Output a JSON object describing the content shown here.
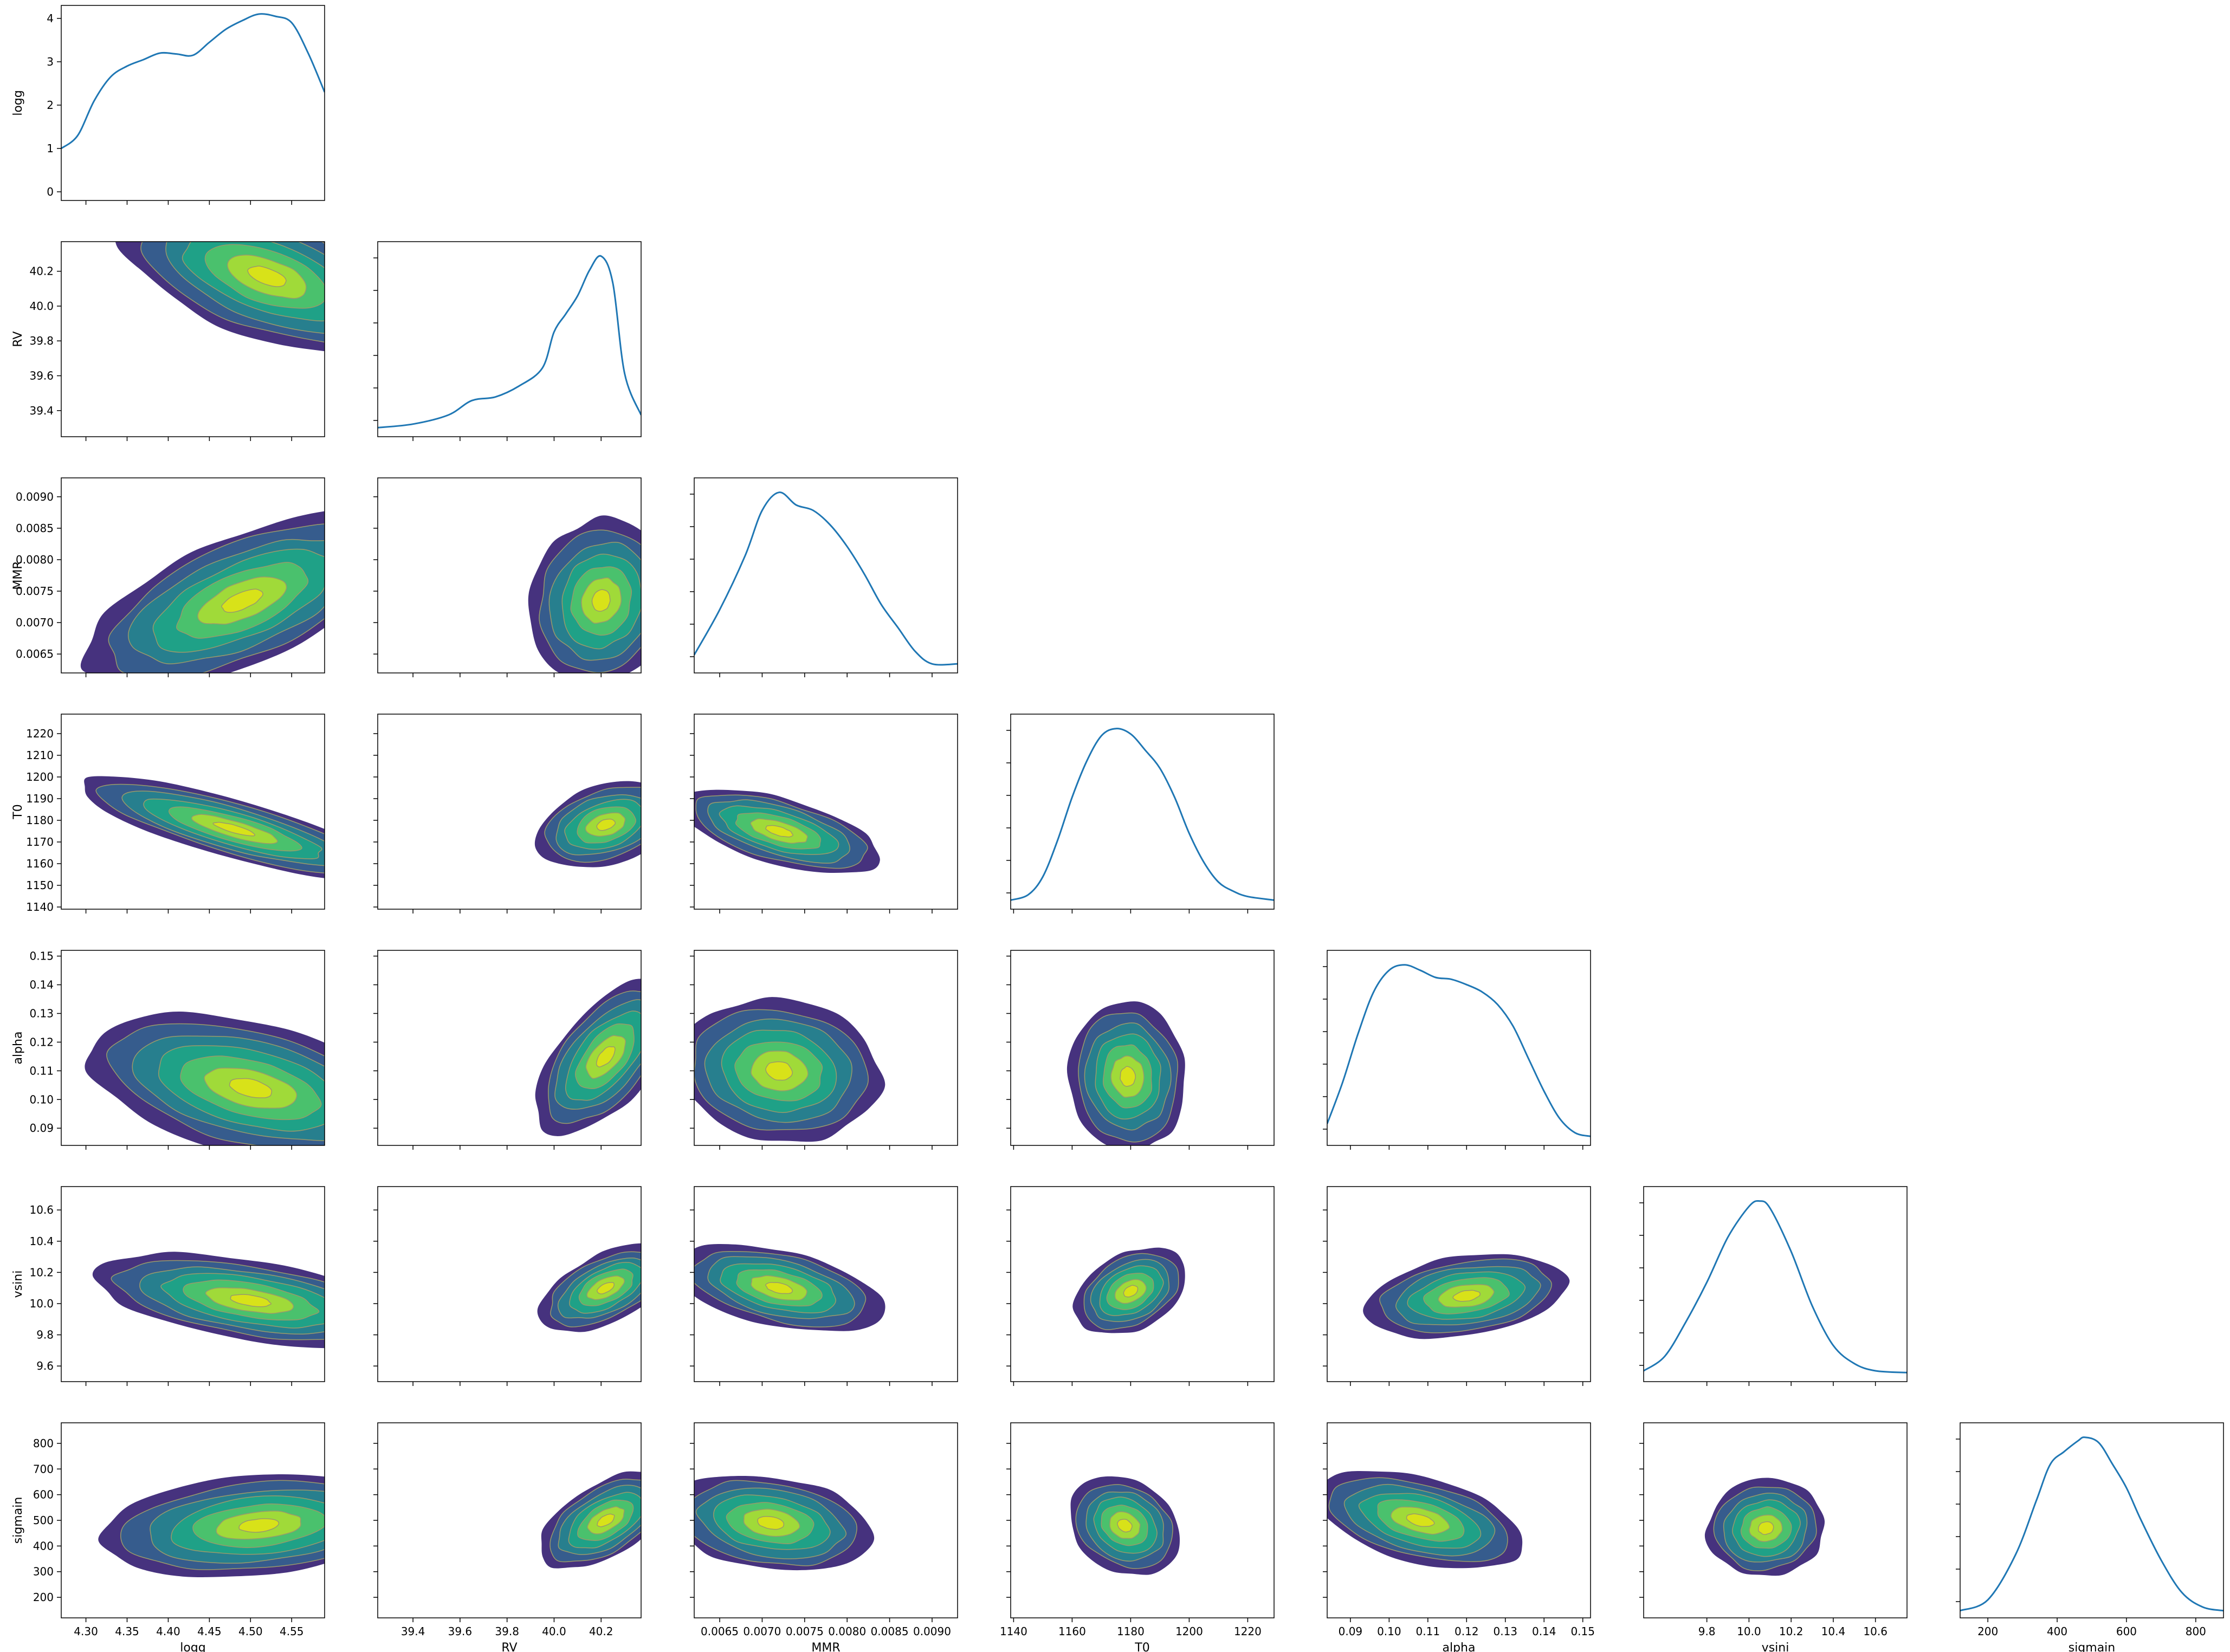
{
  "chart_data": {
    "type": "corner",
    "title": "",
    "parameters": [
      "logg",
      "RV",
      "MMR",
      "T0",
      "alpha",
      "vsini",
      "sigmain"
    ],
    "axis_labels": [
      "logg",
      "RV",
      "MMR",
      "T0",
      "alpha",
      "vsini",
      "sigmain"
    ],
    "ranges": [
      [
        4.27,
        4.59
      ],
      [
        39.25,
        40.37
      ],
      [
        0.0062,
        0.0093
      ],
      [
        1139,
        1229
      ],
      [
        0.084,
        0.152
      ],
      [
        9.5,
        10.75
      ],
      [
        120,
        880
      ]
    ],
    "x_ticks": [
      [
        "4.30",
        "4.35",
        "4.40",
        "4.45",
        "4.50",
        "4.55"
      ],
      [
        "39.4",
        "39.6",
        "39.8",
        "40.0",
        "40.2"
      ],
      [
        "0.0065",
        "0.0070",
        "0.0075",
        "0.0080",
        "0.0085",
        "0.0090"
      ],
      [
        "1140",
        "1160",
        "1180",
        "1200",
        "1220"
      ],
      [
        "0.09",
        "0.10",
        "0.11",
        "0.12",
        "0.13",
        "0.14",
        "0.15"
      ],
      [
        "9.8",
        "10.0",
        "10.2",
        "10.4",
        "10.6"
      ],
      [
        "200",
        "400",
        "600",
        "800"
      ]
    ],
    "y_ticks": [
      [
        "39.4",
        "39.6",
        "39.8",
        "40.0",
        "40.2"
      ],
      [
        "0.0065",
        "0.0070",
        "0.0075",
        "0.0080",
        "0.0085",
        "0.0090"
      ],
      [
        "1140",
        "1150",
        "1160",
        "1170",
        "1180",
        "1190",
        "1200",
        "1210",
        "1220"
      ],
      [
        "0.09",
        "0.10",
        "0.11",
        "0.12",
        "0.13",
        "0.14",
        "0.15"
      ],
      [
        "9.6",
        "9.8",
        "10.0",
        "10.2",
        "10.4",
        "10.6"
      ],
      [
        "200",
        "300",
        "400",
        "500",
        "600",
        "700",
        "800"
      ]
    ],
    "first_diagonal_y_ticks": [
      "0",
      "1",
      "2",
      "3",
      "4"
    ],
    "first_diagonal_ylim": [
      -0.2,
      4.3
    ],
    "diagonal_kde": [
      {
        "name": "logg",
        "x": [
          4.27,
          4.29,
          4.31,
          4.33,
          4.35,
          4.37,
          4.39,
          4.41,
          4.43,
          4.45,
          4.47,
          4.49,
          4.51,
          4.53,
          4.55,
          4.57,
          4.59
        ],
        "y": [
          1.0,
          1.3,
          2.1,
          2.65,
          2.9,
          3.05,
          3.2,
          3.18,
          3.15,
          3.45,
          3.75,
          3.95,
          4.1,
          4.05,
          3.9,
          3.2,
          2.3
        ]
      },
      {
        "name": "RV",
        "x": [
          39.25,
          39.4,
          39.55,
          39.65,
          39.75,
          39.85,
          39.95,
          40.0,
          40.05,
          40.1,
          40.15,
          40.2,
          40.25,
          40.3,
          40.37
        ],
        "y": [
          0.05,
          0.07,
          0.12,
          0.2,
          0.22,
          0.28,
          0.38,
          0.58,
          0.68,
          0.78,
          0.92,
          1.0,
          0.85,
          0.35,
          0.12
        ]
      },
      {
        "name": "MMR",
        "x": [
          0.0062,
          0.0065,
          0.0068,
          0.007,
          0.0072,
          0.0074,
          0.0076,
          0.0078,
          0.008,
          0.0082,
          0.0084,
          0.0086,
          0.0088,
          0.009,
          0.0093
        ],
        "y": [
          0.1,
          0.35,
          0.65,
          0.9,
          1.0,
          0.93,
          0.9,
          0.82,
          0.7,
          0.55,
          0.38,
          0.25,
          0.12,
          0.05,
          0.05
        ]
      },
      {
        "name": "T0",
        "x": [
          1139,
          1145,
          1150,
          1155,
          1160,
          1165,
          1170,
          1175,
          1180,
          1185,
          1190,
          1195,
          1200,
          1205,
          1210,
          1215,
          1220,
          1229
        ],
        "y": [
          0.05,
          0.08,
          0.18,
          0.38,
          0.62,
          0.82,
          0.96,
          1.0,
          0.97,
          0.88,
          0.78,
          0.62,
          0.42,
          0.26,
          0.15,
          0.1,
          0.07,
          0.05
        ]
      },
      {
        "name": "alpha",
        "x": [
          0.084,
          0.088,
          0.092,
          0.096,
          0.1,
          0.104,
          0.108,
          0.112,
          0.116,
          0.12,
          0.124,
          0.128,
          0.132,
          0.136,
          0.14,
          0.144,
          0.148,
          0.152
        ],
        "y": [
          0.12,
          0.35,
          0.62,
          0.85,
          0.97,
          1.0,
          0.97,
          0.93,
          0.92,
          0.89,
          0.85,
          0.78,
          0.66,
          0.48,
          0.3,
          0.15,
          0.07,
          0.05
        ]
      },
      {
        "name": "vsini",
        "x": [
          9.5,
          9.6,
          9.7,
          9.8,
          9.9,
          10.0,
          10.05,
          10.1,
          10.2,
          10.3,
          10.4,
          10.5,
          10.6,
          10.75
        ],
        "y": [
          0.06,
          0.14,
          0.33,
          0.55,
          0.8,
          0.97,
          1.0,
          0.96,
          0.72,
          0.42,
          0.2,
          0.1,
          0.06,
          0.05
        ]
      },
      {
        "name": "sigmain",
        "x": [
          120,
          200,
          280,
          340,
          380,
          420,
          460,
          480,
          520,
          560,
          600,
          640,
          700,
          760,
          820,
          880
        ],
        "y": [
          0.04,
          0.1,
          0.35,
          0.65,
          0.85,
          0.92,
          0.98,
          1.0,
          0.97,
          0.85,
          0.72,
          0.55,
          0.32,
          0.14,
          0.06,
          0.04
        ]
      }
    ],
    "pair_density": {
      "style": "filled kde contours",
      "levels": 6,
      "pairs": [
        {
          "x": "logg",
          "y": "RV",
          "center": [
            4.52,
            40.17
          ],
          "spread": [
            0.18,
            0.45
          ],
          "corr": -0.55
        },
        {
          "x": "logg",
          "y": "MMR",
          "center": [
            4.49,
            0.00735
          ],
          "spread": [
            0.19,
            0.0014
          ],
          "corr": 0.62
        },
        {
          "x": "RV",
          "y": "MMR",
          "center": [
            40.2,
            0.00735
          ],
          "spread": [
            0.3,
            0.0013
          ],
          "corr": 0.1
        },
        {
          "x": "logg",
          "y": "T0",
          "center": [
            4.48,
            1176
          ],
          "spread": [
            0.19,
            24
          ],
          "corr": -0.82
        },
        {
          "x": "RV",
          "y": "T0",
          "center": [
            40.22,
            1178
          ],
          "spread": [
            0.3,
            20
          ],
          "corr": 0.35
        },
        {
          "x": "MMR",
          "y": "T0",
          "center": [
            0.0072,
            1175
          ],
          "spread": [
            0.0012,
            20
          ],
          "corr": -0.6
        },
        {
          "x": "logg",
          "y": "alpha",
          "center": [
            4.5,
            0.104
          ],
          "spread": [
            0.2,
            0.026
          ],
          "corr": -0.45
        },
        {
          "x": "RV",
          "y": "alpha",
          "center": [
            40.22,
            0.115
          ],
          "spread": [
            0.3,
            0.027
          ],
          "corr": 0.6
        },
        {
          "x": "MMR",
          "y": "alpha",
          "center": [
            0.0072,
            0.11
          ],
          "spread": [
            0.0012,
            0.025
          ],
          "corr": -0.1
        },
        {
          "x": "T0",
          "y": "alpha",
          "center": [
            1179,
            0.108
          ],
          "spread": [
            20,
            0.026
          ],
          "corr": -0.05
        },
        {
          "x": "logg",
          "y": "vsini",
          "center": [
            4.5,
            10.02
          ],
          "spread": [
            0.19,
            0.3
          ],
          "corr": -0.5
        },
        {
          "x": "RV",
          "y": "vsini",
          "center": [
            40.22,
            10.1
          ],
          "spread": [
            0.28,
            0.28
          ],
          "corr": 0.55
        },
        {
          "x": "MMR",
          "y": "vsini",
          "center": [
            0.0072,
            10.1
          ],
          "spread": [
            0.0012,
            0.28
          ],
          "corr": -0.45
        },
        {
          "x": "T0",
          "y": "vsini",
          "center": [
            1180,
            10.08
          ],
          "spread": [
            19,
            0.28
          ],
          "corr": 0.35
        },
        {
          "x": "alpha",
          "y": "vsini",
          "center": [
            0.12,
            10.05
          ],
          "spread": [
            0.026,
            0.27
          ],
          "corr": 0.3
        },
        {
          "x": "logg",
          "y": "sigmain",
          "center": [
            4.51,
            480
          ],
          "spread": [
            0.19,
            200
          ],
          "corr": 0.25
        },
        {
          "x": "RV",
          "y": "sigmain",
          "center": [
            40.22,
            500
          ],
          "spread": [
            0.28,
            190
          ],
          "corr": 0.55
        },
        {
          "x": "MMR",
          "y": "sigmain",
          "center": [
            0.0071,
            490
          ],
          "spread": [
            0.0012,
            190
          ],
          "corr": -0.25
        },
        {
          "x": "T0",
          "y": "sigmain",
          "center": [
            1178,
            480
          ],
          "spread": [
            19,
            190
          ],
          "corr": -0.2
        },
        {
          "x": "alpha",
          "y": "sigmain",
          "center": [
            0.108,
            500
          ],
          "spread": [
            0.027,
            190
          ],
          "corr": -0.45
        },
        {
          "x": "vsini",
          "y": "sigmain",
          "center": [
            10.08,
            470
          ],
          "spread": [
            0.28,
            190
          ],
          "corr": 0.05
        }
      ]
    },
    "colors": {
      "line": "#1f77b4",
      "levels": [
        "#46327e",
        "#365c8d",
        "#277f8e",
        "#1fa187",
        "#4ac16d",
        "#a0da39",
        "#d8e219"
      ],
      "contour_edge": "#9a9a6a",
      "axes": "#000000",
      "step_line": "#555555",
      "background": "#ffffff"
    }
  }
}
